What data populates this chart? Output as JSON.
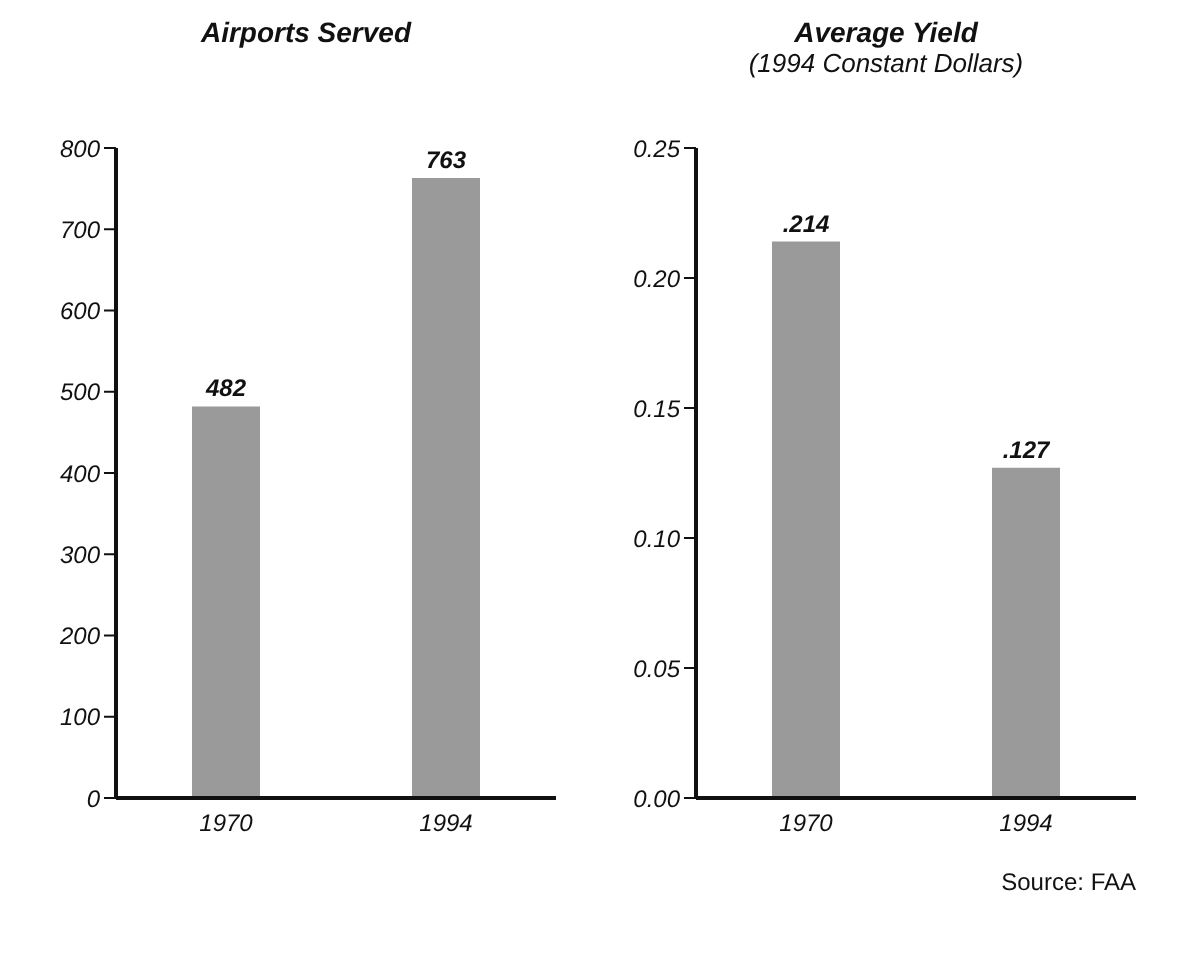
{
  "chart_data": [
    {
      "type": "bar",
      "title": "Airports Served",
      "categories": [
        "1970",
        "1994"
      ],
      "values": [
        482,
        763
      ],
      "color": "#9a9a9a",
      "ylim": [
        0,
        800
      ],
      "yticks": [
        0,
        100,
        200,
        300,
        400,
        500,
        600,
        700,
        800
      ],
      "data_labels": true
    },
    {
      "type": "bar",
      "title": "Average Yield",
      "subtitle": "(1994 Constant Dollars)",
      "categories": [
        "1970",
        "1994"
      ],
      "values": [
        0.214,
        0.127
      ],
      "value_labels": [
        ".214",
        ".127"
      ],
      "color": "#9a9a9a",
      "ylim": [
        0,
        0.25
      ],
      "yticks": [
        {
          "value": 0,
          "label": "0.00"
        },
        {
          "value": 0.05,
          "label": "0.05"
        },
        {
          "value": 0.1,
          "label": "0.10"
        },
        {
          "value": 0.15,
          "label": "0.15"
        },
        {
          "value": 0.2,
          "label": "0.20"
        },
        {
          "value": 0.25,
          "label": "0.25"
        }
      ],
      "annotations": [
        "Source: FAA"
      ]
    }
  ]
}
